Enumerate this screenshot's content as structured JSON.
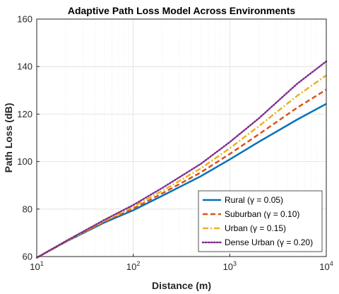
{
  "chart_data": {
    "type": "line",
    "title": "Adaptive Path Loss Model Across Environments",
    "xlabel": "Distance (m)",
    "ylabel": "Path Loss (dB)",
    "xscale": "log",
    "xlim": [
      10,
      10000
    ],
    "ylim": [
      60,
      160
    ],
    "x_ticks": [
      10,
      100,
      1000,
      10000
    ],
    "x_tick_labels": [
      {
        "base": "10",
        "exp": "1"
      },
      {
        "base": "10",
        "exp": "2"
      },
      {
        "base": "10",
        "exp": "3"
      },
      {
        "base": "10",
        "exp": "4"
      }
    ],
    "y_ticks": [
      60,
      80,
      100,
      120,
      140,
      160
    ],
    "grid": true,
    "legend_position": "bottom-right",
    "x": [
      10,
      20,
      50,
      100,
      200,
      500,
      1000,
      2000,
      5000,
      10000
    ],
    "series": [
      {
        "name": "Rural (γ = 0.05)",
        "color": "#0072BD",
        "dash": "solid",
        "values": [
          59.5,
          66.2,
          74.3,
          79.5,
          85.6,
          93.8,
          100.9,
          108.3,
          117.7,
          124.3
        ]
      },
      {
        "name": "Suburban (γ = 0.10)",
        "color": "#D95319",
        "dash": "dashed",
        "values": [
          59.5,
          66.3,
          74.6,
          80.2,
          86.6,
          95.4,
          103.2,
          111.5,
          122.7,
          130.3
        ]
      },
      {
        "name": "Urban (γ = 0.15)",
        "color": "#EDB120",
        "dash": "dashdot",
        "values": [
          59.5,
          66.4,
          75.0,
          81.0,
          87.7,
          97.1,
          105.6,
          114.9,
          127.7,
          136.3
        ]
      },
      {
        "name": "Dense Urban (γ = 0.20)",
        "color": "#7E2F8E",
        "dash": "dotted",
        "values": [
          59.5,
          66.5,
          75.4,
          81.7,
          88.9,
          99.0,
          108.2,
          118.2,
          132.8,
          142.2
        ]
      }
    ]
  }
}
